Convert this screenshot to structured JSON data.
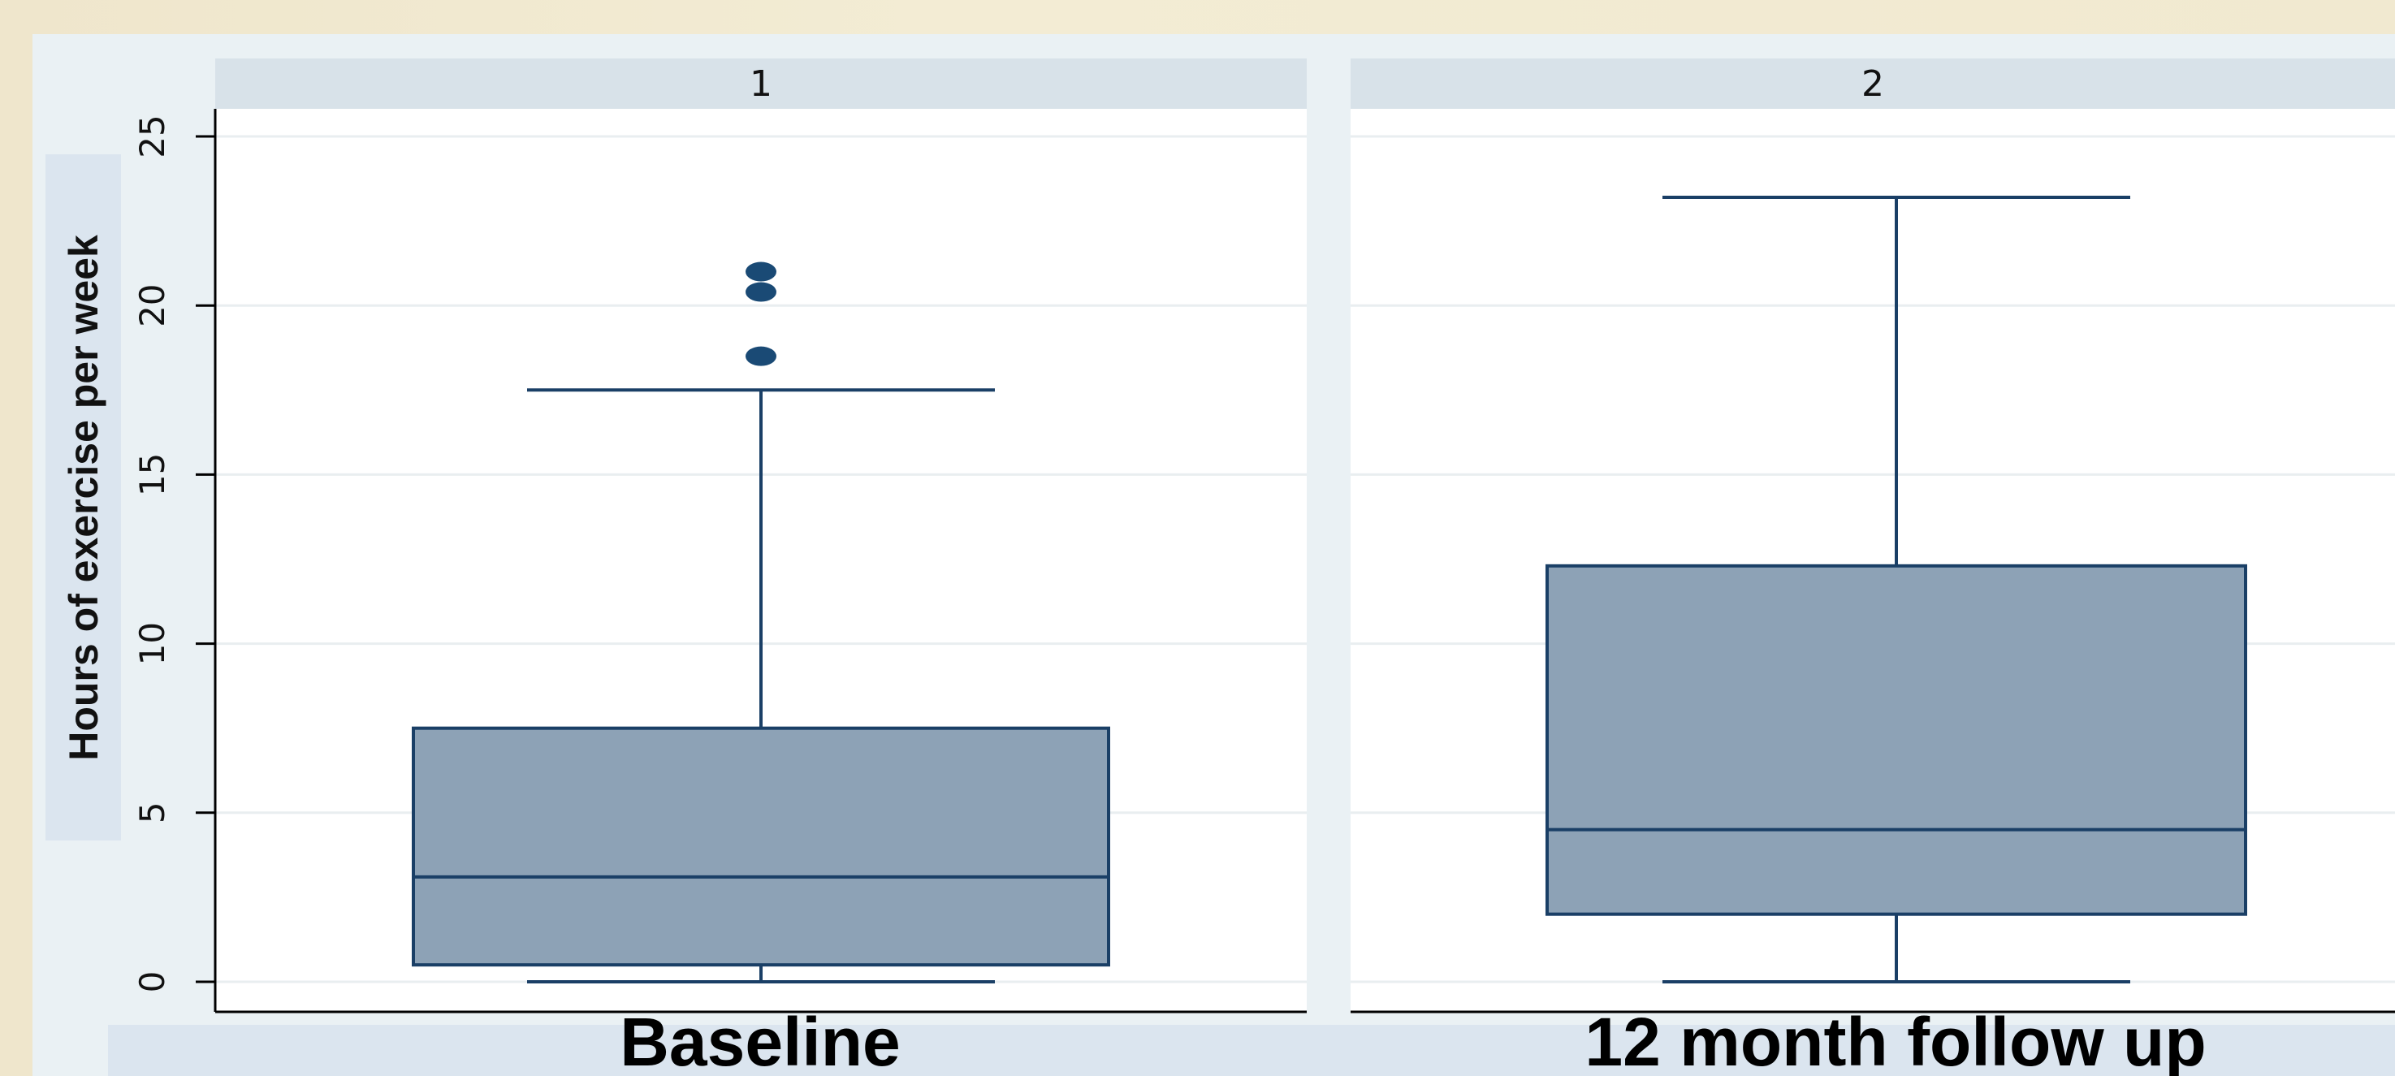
{
  "chart_data": {
    "type": "box",
    "ylabel": "Hours of exercise per week",
    "ylim": [
      0,
      25
    ],
    "yticks": [
      0,
      5,
      10,
      15,
      20,
      25
    ],
    "grid": true,
    "panels": [
      {
        "facet": "1",
        "category": "Baseline",
        "box": {
          "whisker_low": 0,
          "q1": 0.5,
          "median": 3.1,
          "q3": 7.5,
          "whisker_high": 17.5
        },
        "outliers": [
          18.5,
          20.4,
          21.0
        ]
      },
      {
        "facet": "2",
        "category": "12 month follow up",
        "box": {
          "whisker_low": 0,
          "q1": 2.0,
          "median": 4.5,
          "q3": 12.3,
          "whisker_high": 23.2
        },
        "outliers": []
      }
    ],
    "colors": {
      "box_fill": "#8da2b6",
      "box_stroke": "#1a3f66",
      "outlier": "#1a4a75",
      "strip": "#d8e2e9",
      "plot_region": "#eaf1f4",
      "bottom_band": "#dbe5ef",
      "gridline": "#e9eef0"
    }
  }
}
